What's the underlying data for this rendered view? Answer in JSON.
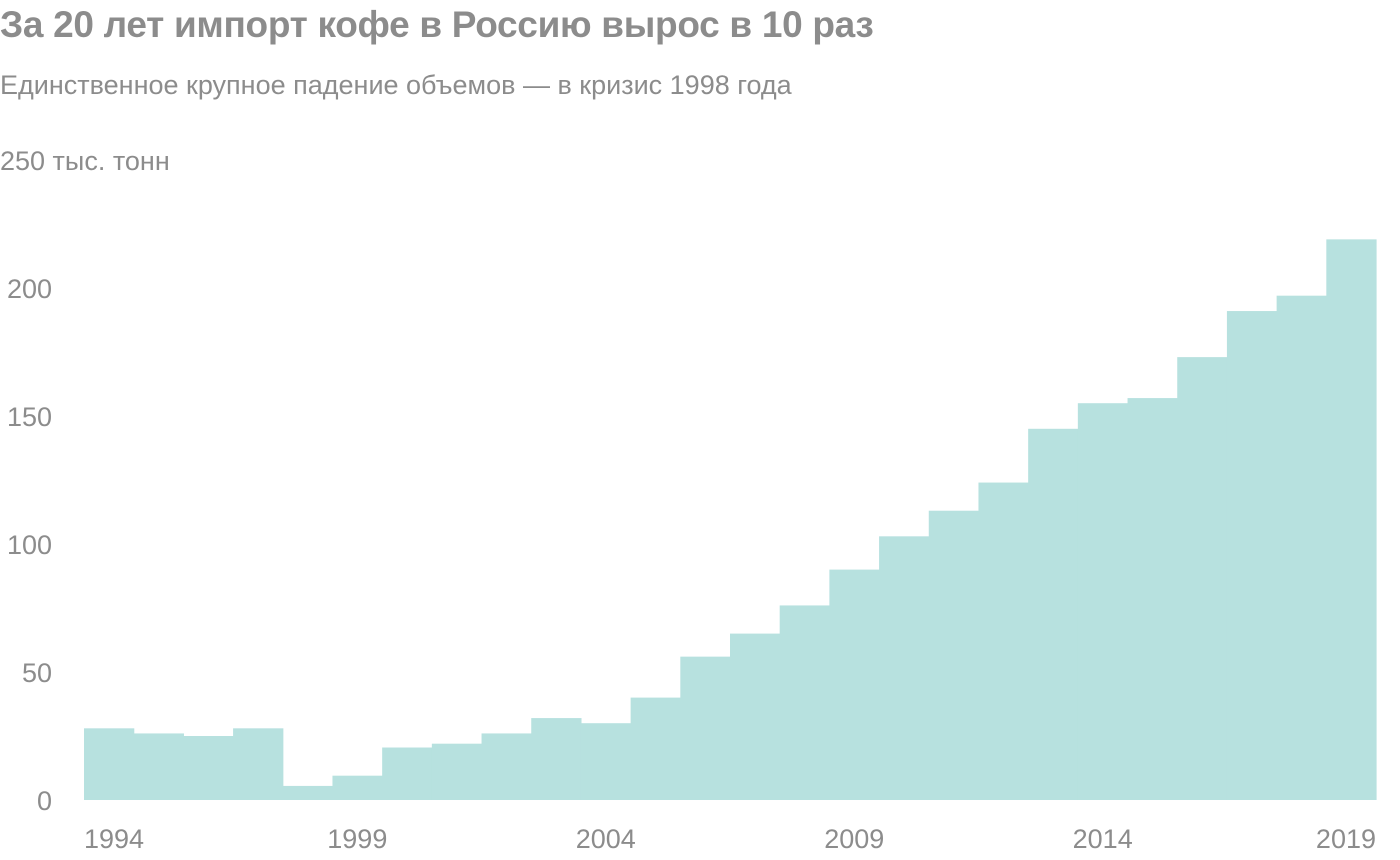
{
  "title": "За 20 лет импорт кофе в Россию вырос в 10 раз",
  "subtitle": "Единственное крупное падение объемов — в кризис 1998 года",
  "chart_data": {
    "type": "bar",
    "title": "За 20 лет импорт кофе в Россию вырос в 10 раз",
    "subtitle": "Единственное крупное падение объемов — в кризис 1998 года",
    "unit_label": "тыс. тонн",
    "categories": [
      1994,
      1995,
      1996,
      1997,
      1998,
      1999,
      2000,
      2001,
      2002,
      2003,
      2004,
      2005,
      2006,
      2007,
      2008,
      2009,
      2010,
      2011,
      2012,
      2013,
      2014,
      2015,
      2016,
      2017,
      2018,
      2019
    ],
    "values": [
      28,
      26,
      25,
      28,
      5.5,
      9.5,
      20.5,
      22,
      26,
      32,
      30,
      40,
      56,
      65,
      76,
      90,
      103,
      113,
      124,
      145,
      155,
      157,
      173,
      191,
      197,
      219
    ],
    "ylim": [
      0,
      250
    ],
    "y_ticks": [
      0,
      50,
      100,
      150,
      200,
      250
    ],
    "y_tick_labels": [
      "0",
      "50",
      "100",
      "150",
      "200",
      "250 тыс. тонн"
    ],
    "x_tick_labels": [
      "1994",
      "1999",
      "2004",
      "2009",
      "2014",
      "2019"
    ],
    "bar_color": "#b7e1df",
    "text_color": "#8c8c8c",
    "grid": false
  }
}
